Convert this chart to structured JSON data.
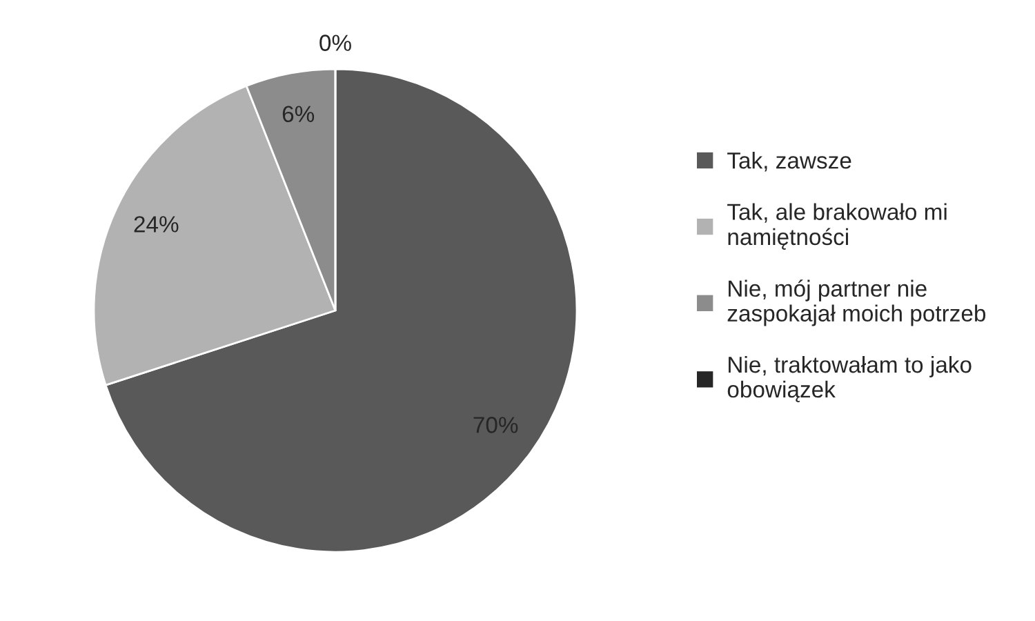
{
  "chart_data": {
    "type": "pie",
    "categories": [
      "Tak, zawsze",
      "Tak, ale brakowało mi\nnamiętności",
      "Nie, mój partner nie\nzaspokajał moich potrzeb",
      "Nie, traktowałam to jako\nobowiązek"
    ],
    "values": [
      70,
      24,
      6,
      0
    ],
    "value_labels": [
      "70%",
      "24%",
      "6%",
      "0%"
    ],
    "colors": [
      "#595959",
      "#b2b2b2",
      "#8c8c8c",
      "#262626"
    ],
    "legend": "right"
  }
}
